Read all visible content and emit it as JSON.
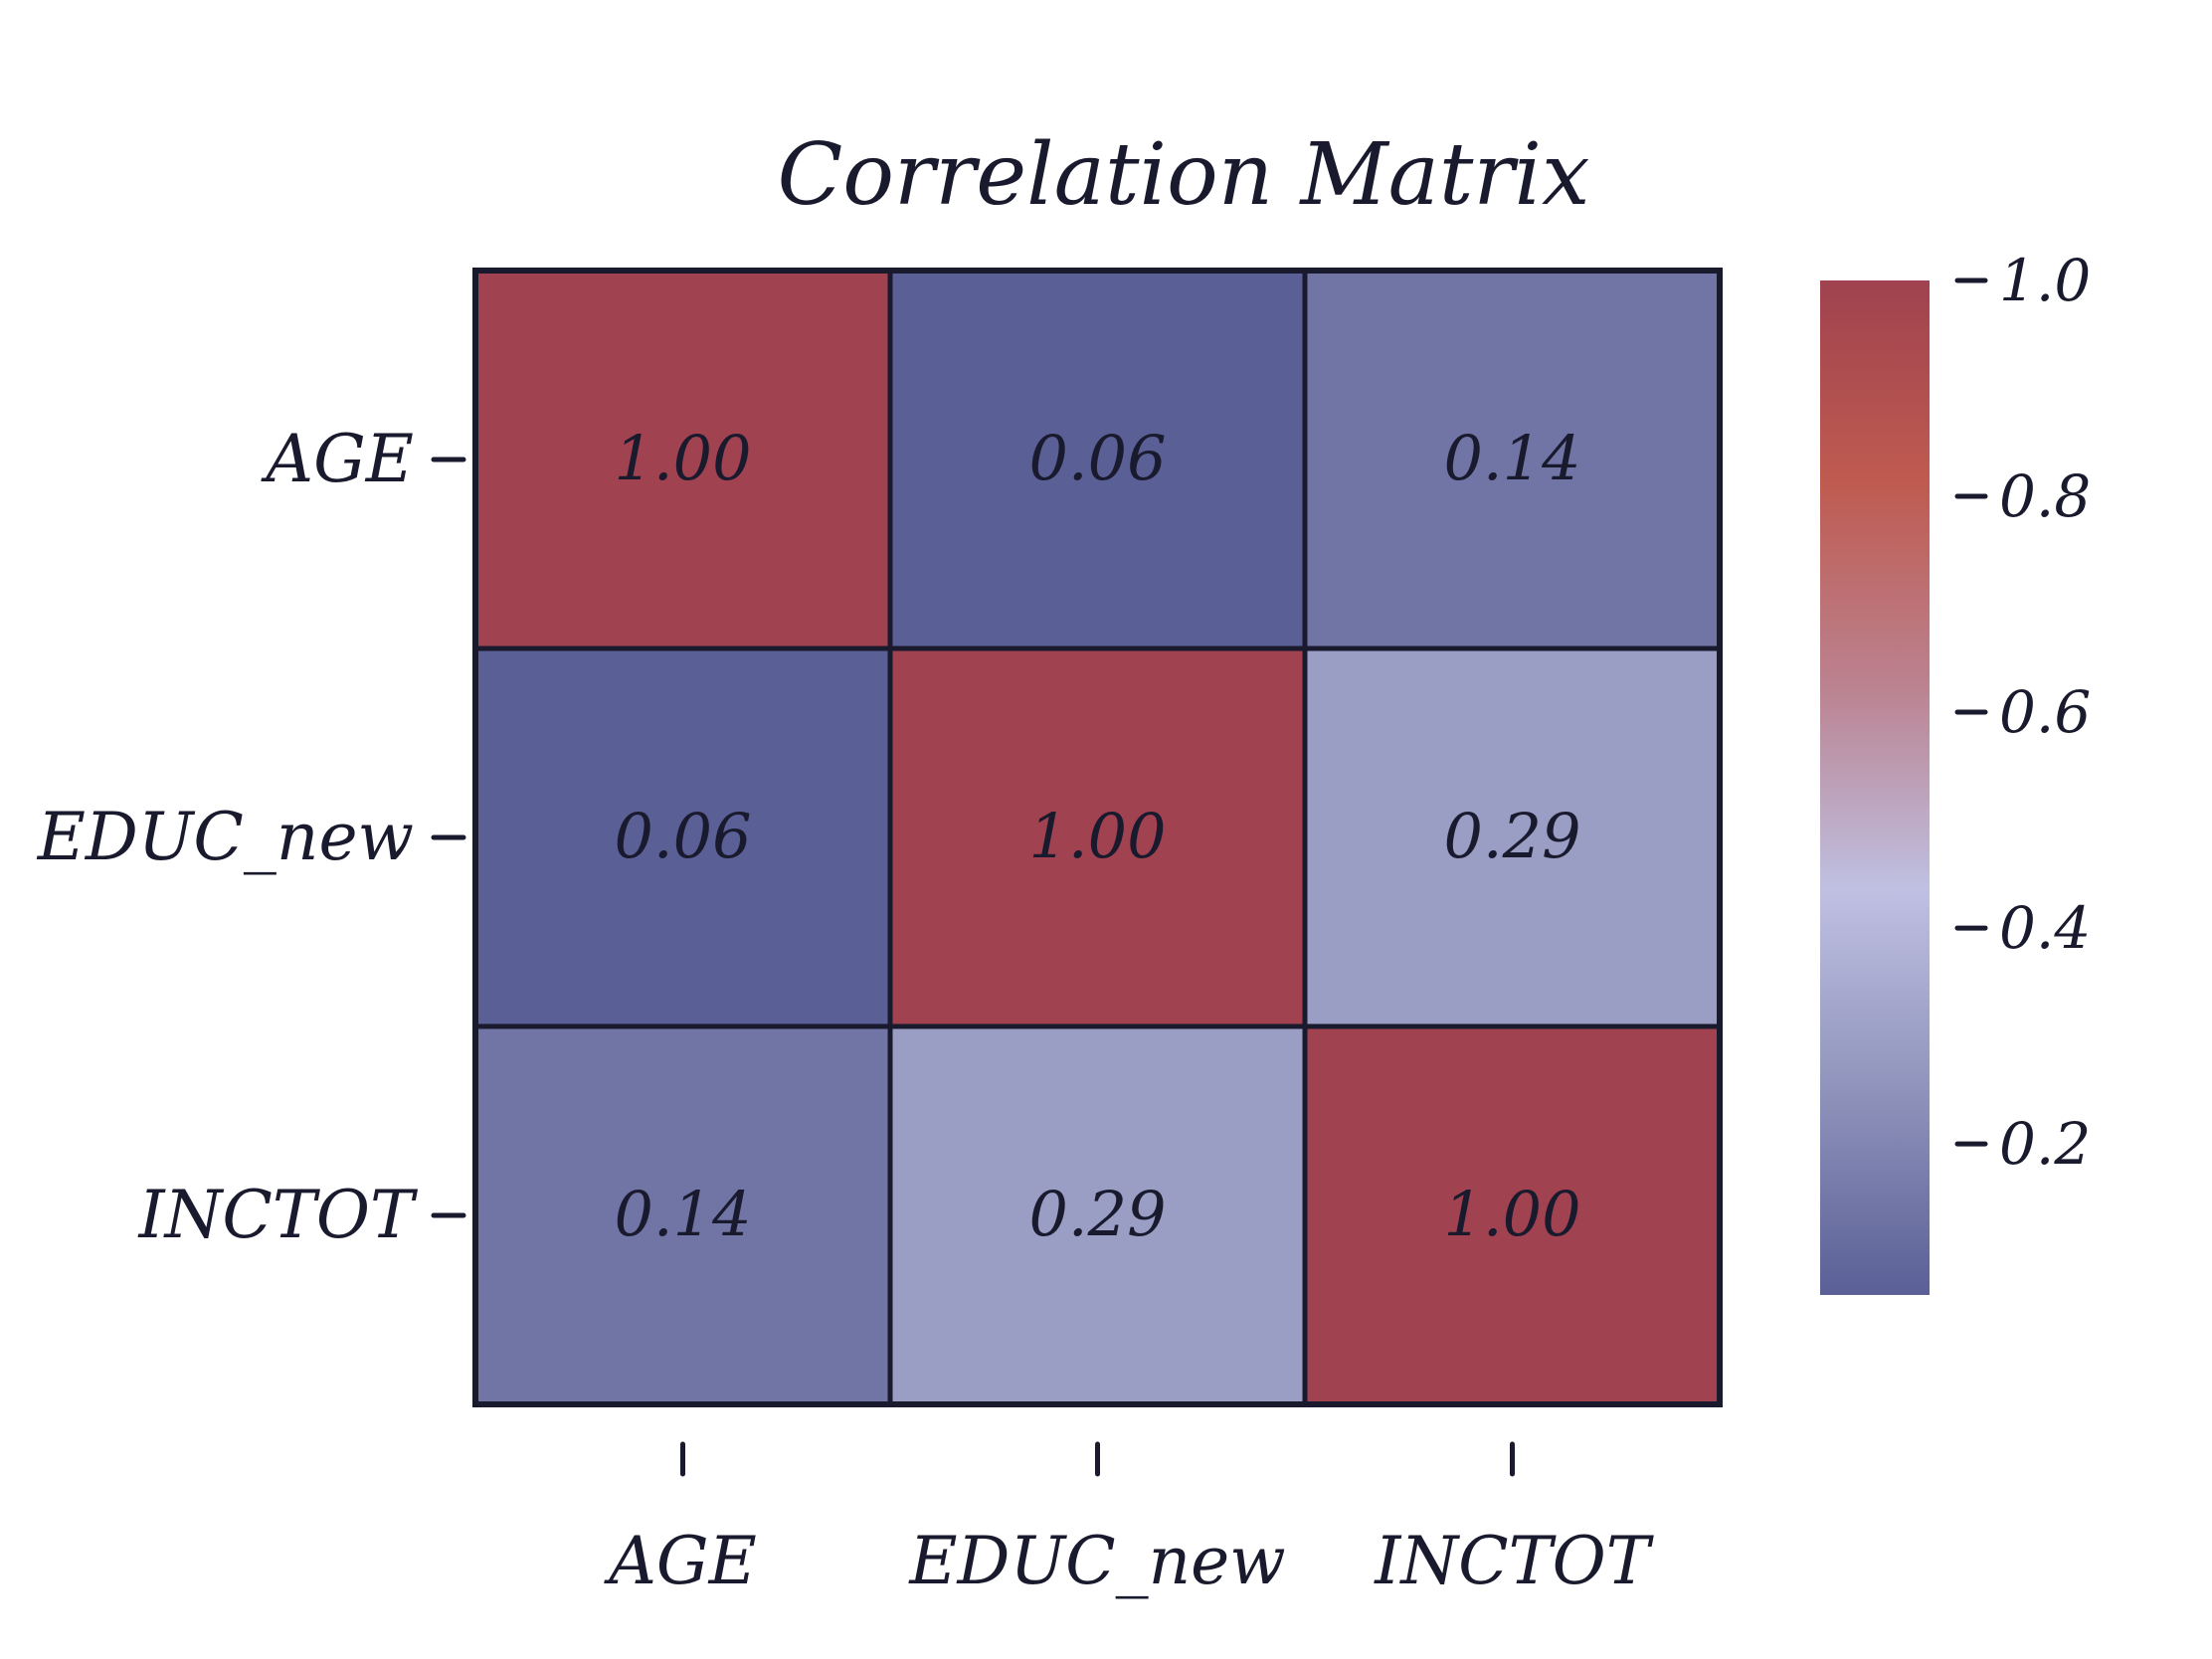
{
  "chart_data": {
    "type": "heatmap",
    "title": "Correlation Matrix",
    "rows": [
      "AGE",
      "EDUC_new",
      "INCTOT"
    ],
    "columns": [
      "AGE",
      "EDUC_new",
      "INCTOT"
    ],
    "values": [
      [
        1.0,
        0.06,
        0.14
      ],
      [
        0.06,
        1.0,
        0.29
      ],
      [
        0.14,
        0.29,
        1.0
      ]
    ],
    "cell_labels": [
      [
        "1.00",
        "0.06",
        "0.14"
      ],
      [
        "0.06",
        "1.00",
        "0.29"
      ],
      [
        "0.14",
        "0.29",
        "1.00"
      ]
    ],
    "colorbar": {
      "range": [
        0.06,
        1.0
      ],
      "ticks": [
        0.2,
        0.4,
        0.6,
        0.8,
        1.0
      ],
      "tick_labels": [
        "0.2",
        "0.4",
        "0.6",
        "0.8",
        "1.0"
      ],
      "colors": [
        "#5a5f96",
        "#8f93bb",
        "#bfc0e2",
        "#bb8290",
        "#bf5b50",
        "#a0424f"
      ],
      "placement": "right"
    },
    "grid": true
  },
  "colors": {
    "ink": "#1a1a2e",
    "background": "#ffffff"
  }
}
